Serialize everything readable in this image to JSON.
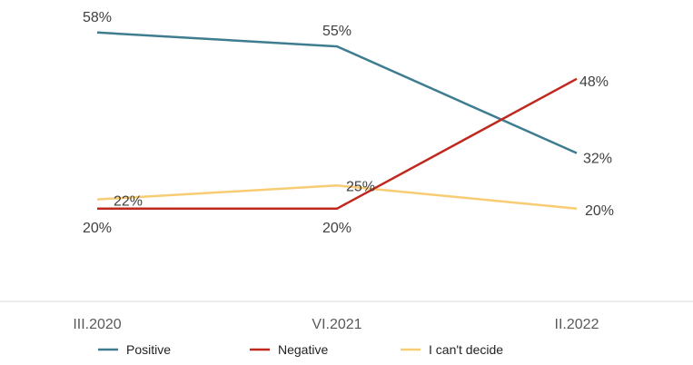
{
  "chart_data": {
    "type": "line",
    "categories": [
      "III.2020",
      "VI.2021",
      "II.2022"
    ],
    "series": [
      {
        "name": "Positive",
        "values": [
          58,
          55,
          32
        ],
        "color": "#3e7d90"
      },
      {
        "name": "Negative",
        "values": [
          20,
          20,
          48
        ],
        "color": "#c0281e"
      },
      {
        "name": "I can't decide",
        "values": [
          22,
          25,
          20
        ],
        "color": "#f8cc73"
      }
    ],
    "value_format": "{v}%",
    "ylim": [
      0,
      65
    ],
    "grid": false,
    "legend_position": "bottom"
  }
}
